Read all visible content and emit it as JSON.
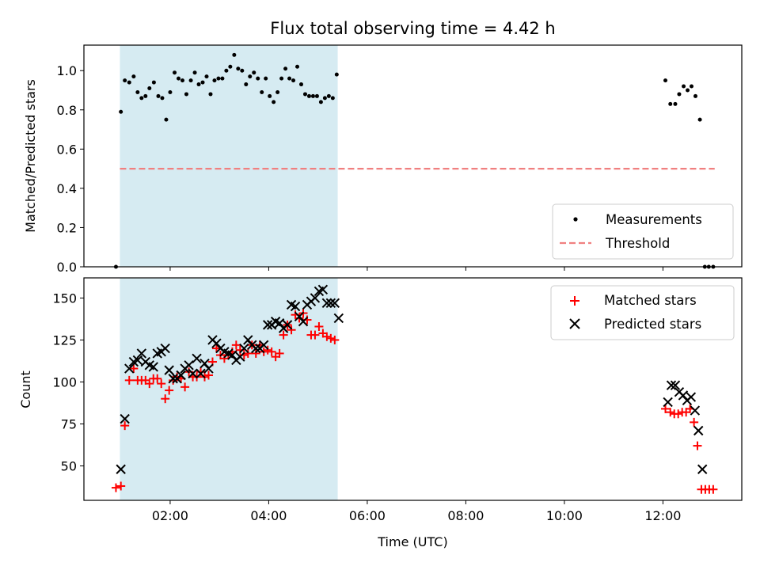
{
  "chart_data": {
    "title": "Flux total observing time = 4.42 h",
    "xlabel": "Time (UTC)",
    "xlim": [
      0.25,
      13.6
    ],
    "xticks": [
      {
        "v": 2,
        "label": "02:00"
      },
      {
        "v": 4,
        "label": "04:00"
      },
      {
        "v": 6,
        "label": "06:00"
      },
      {
        "v": 8,
        "label": "08:00"
      },
      {
        "v": 10,
        "label": "10:00"
      },
      {
        "v": 12,
        "label": "12:00"
      }
    ],
    "shaded_interval": {
      "start": 0.98,
      "end": 5.4,
      "color": "#add8e6"
    },
    "colors": {
      "measurements": "#000000",
      "threshold": "#f08080",
      "matched": "#ff0000",
      "predicted": "#000000"
    },
    "top": {
      "type": "scatter",
      "ylabel": "Matched/Predicted stars",
      "ylim": [
        0,
        1.13
      ],
      "yticks": [
        "0.0",
        "0.2",
        "0.4",
        "0.6",
        "0.8",
        "1.0"
      ],
      "legend_position": "lower right",
      "legend": [
        "Measurements",
        "Threshold"
      ],
      "threshold": {
        "value": 0.5,
        "x_start": 0.98,
        "x_end": 13.05
      },
      "measurements": [
        [
          0.9,
          0.0
        ],
        [
          1.0,
          0.79
        ],
        [
          1.08,
          0.95
        ],
        [
          1.17,
          0.94
        ],
        [
          1.26,
          0.97
        ],
        [
          1.34,
          0.89
        ],
        [
          1.42,
          0.86
        ],
        [
          1.5,
          0.87
        ],
        [
          1.58,
          0.91
        ],
        [
          1.67,
          0.94
        ],
        [
          1.76,
          0.87
        ],
        [
          1.84,
          0.86
        ],
        [
          1.92,
          0.75
        ],
        [
          2.0,
          0.89
        ],
        [
          2.09,
          0.99
        ],
        [
          2.17,
          0.96
        ],
        [
          2.25,
          0.95
        ],
        [
          2.33,
          0.88
        ],
        [
          2.42,
          0.95
        ],
        [
          2.5,
          0.99
        ],
        [
          2.58,
          0.93
        ],
        [
          2.66,
          0.94
        ],
        [
          2.74,
          0.97
        ],
        [
          2.82,
          0.88
        ],
        [
          2.9,
          0.95
        ],
        [
          2.98,
          0.96
        ],
        [
          3.06,
          0.96
        ],
        [
          3.14,
          1.0
        ],
        [
          3.22,
          1.02
        ],
        [
          3.3,
          1.08
        ],
        [
          3.38,
          1.01
        ],
        [
          3.46,
          1.0
        ],
        [
          3.54,
          0.93
        ],
        [
          3.62,
          0.97
        ],
        [
          3.7,
          0.99
        ],
        [
          3.78,
          0.96
        ],
        [
          3.86,
          0.89
        ],
        [
          3.94,
          0.96
        ],
        [
          4.02,
          0.87
        ],
        [
          4.1,
          0.84
        ],
        [
          4.18,
          0.89
        ],
        [
          4.26,
          0.96
        ],
        [
          4.34,
          1.01
        ],
        [
          4.42,
          0.96
        ],
        [
          4.5,
          0.95
        ],
        [
          4.58,
          1.02
        ],
        [
          4.66,
          0.93
        ],
        [
          4.74,
          0.88
        ],
        [
          4.82,
          0.87
        ],
        [
          4.9,
          0.87
        ],
        [
          4.98,
          0.87
        ],
        [
          5.06,
          0.84
        ],
        [
          5.14,
          0.86
        ],
        [
          5.22,
          0.87
        ],
        [
          5.3,
          0.86
        ],
        [
          5.38,
          0.98
        ],
        [
          12.05,
          0.95
        ],
        [
          12.15,
          0.83
        ],
        [
          12.25,
          0.83
        ],
        [
          12.33,
          0.88
        ],
        [
          12.42,
          0.92
        ],
        [
          12.5,
          0.9
        ],
        [
          12.58,
          0.92
        ],
        [
          12.66,
          0.87
        ],
        [
          12.75,
          0.75
        ],
        [
          12.85,
          0.0
        ],
        [
          12.93,
          0.0
        ],
        [
          13.02,
          0.0
        ]
      ]
    },
    "bottom": {
      "type": "scatter",
      "ylabel": "Count",
      "ylim": [
        29.5,
        162
      ],
      "yticks": [
        "50",
        "75",
        "100",
        "125",
        "150"
      ],
      "legend_position": "upper right",
      "legend": [
        "Matched stars",
        "Predicted stars"
      ],
      "matched": [
        [
          0.9,
          37
        ],
        [
          1.0,
          38
        ],
        [
          1.08,
          74
        ],
        [
          1.17,
          101
        ],
        [
          1.26,
          108
        ],
        [
          1.34,
          101
        ],
        [
          1.42,
          101
        ],
        [
          1.5,
          101
        ],
        [
          1.58,
          99
        ],
        [
          1.66,
          102
        ],
        [
          1.74,
          102
        ],
        [
          1.82,
          99
        ],
        [
          1.9,
          90
        ],
        [
          1.98,
          95
        ],
        [
          2.06,
          101
        ],
        [
          2.14,
          103
        ],
        [
          2.22,
          102
        ],
        [
          2.3,
          97
        ],
        [
          2.38,
          106
        ],
        [
          2.46,
          103
        ],
        [
          2.54,
          103
        ],
        [
          2.62,
          106
        ],
        [
          2.7,
          103
        ],
        [
          2.78,
          104
        ],
        [
          2.86,
          112
        ],
        [
          2.94,
          120
        ],
        [
          3.02,
          116
        ],
        [
          3.1,
          114
        ],
        [
          3.18,
          116
        ],
        [
          3.26,
          118
        ],
        [
          3.34,
          122
        ],
        [
          3.42,
          119
        ],
        [
          3.5,
          116
        ],
        [
          3.58,
          117
        ],
        [
          3.66,
          122
        ],
        [
          3.74,
          117
        ],
        [
          3.82,
          122
        ],
        [
          3.9,
          118
        ],
        [
          3.98,
          119
        ],
        [
          4.06,
          118
        ],
        [
          4.14,
          115
        ],
        [
          4.22,
          117
        ],
        [
          4.3,
          128
        ],
        [
          4.38,
          134
        ],
        [
          4.46,
          131
        ],
        [
          4.54,
          140
        ],
        [
          4.62,
          138
        ],
        [
          4.7,
          141
        ],
        [
          4.78,
          137
        ],
        [
          4.86,
          128
        ],
        [
          4.94,
          128
        ],
        [
          5.02,
          133
        ],
        [
          5.1,
          129
        ],
        [
          5.18,
          127
        ],
        [
          5.26,
          126
        ],
        [
          5.34,
          125
        ],
        [
          12.05,
          84
        ],
        [
          12.15,
          82
        ],
        [
          12.23,
          81
        ],
        [
          12.31,
          81
        ],
        [
          12.39,
          82
        ],
        [
          12.47,
          82
        ],
        [
          12.55,
          84
        ],
        [
          12.63,
          76
        ],
        [
          12.7,
          62
        ],
        [
          12.78,
          36
        ],
        [
          12.86,
          36
        ],
        [
          12.94,
          36
        ],
        [
          13.02,
          36
        ]
      ],
      "predicted": [
        [
          1.0,
          48
        ],
        [
          1.08,
          78
        ],
        [
          1.17,
          108
        ],
        [
          1.26,
          112
        ],
        [
          1.34,
          113
        ],
        [
          1.42,
          117
        ],
        [
          1.5,
          112
        ],
        [
          1.58,
          110
        ],
        [
          1.66,
          109
        ],
        [
          1.74,
          117
        ],
        [
          1.82,
          118
        ],
        [
          1.9,
          120
        ],
        [
          1.98,
          107
        ],
        [
          2.06,
          102
        ],
        [
          2.14,
          102
        ],
        [
          2.22,
          104
        ],
        [
          2.3,
          108
        ],
        [
          2.38,
          110
        ],
        [
          2.46,
          105
        ],
        [
          2.54,
          114
        ],
        [
          2.62,
          105
        ],
        [
          2.7,
          111
        ],
        [
          2.78,
          108
        ],
        [
          2.86,
          125
        ],
        [
          2.94,
          123
        ],
        [
          3.02,
          120
        ],
        [
          3.1,
          118
        ],
        [
          3.18,
          117
        ],
        [
          3.26,
          116
        ],
        [
          3.34,
          113
        ],
        [
          3.42,
          115
        ],
        [
          3.5,
          120
        ],
        [
          3.58,
          125
        ],
        [
          3.66,
          122
        ],
        [
          3.74,
          120
        ],
        [
          3.82,
          120
        ],
        [
          3.9,
          122
        ],
        [
          3.98,
          134
        ],
        [
          4.06,
          134
        ],
        [
          4.14,
          136
        ],
        [
          4.22,
          135
        ],
        [
          4.3,
          132
        ],
        [
          4.38,
          134
        ],
        [
          4.46,
          146
        ],
        [
          4.54,
          145
        ],
        [
          4.62,
          139
        ],
        [
          4.7,
          136
        ],
        [
          4.78,
          146
        ],
        [
          4.86,
          148
        ],
        [
          4.94,
          150
        ],
        [
          5.02,
          154
        ],
        [
          5.1,
          155
        ],
        [
          5.18,
          147
        ],
        [
          5.26,
          147
        ],
        [
          5.34,
          147
        ],
        [
          5.42,
          138
        ],
        [
          12.1,
          88
        ],
        [
          12.17,
          98
        ],
        [
          12.25,
          98
        ],
        [
          12.33,
          94
        ],
        [
          12.41,
          92
        ],
        [
          12.49,
          89
        ],
        [
          12.57,
          91
        ],
        [
          12.65,
          83
        ],
        [
          12.72,
          71
        ],
        [
          12.8,
          48
        ]
      ]
    }
  }
}
